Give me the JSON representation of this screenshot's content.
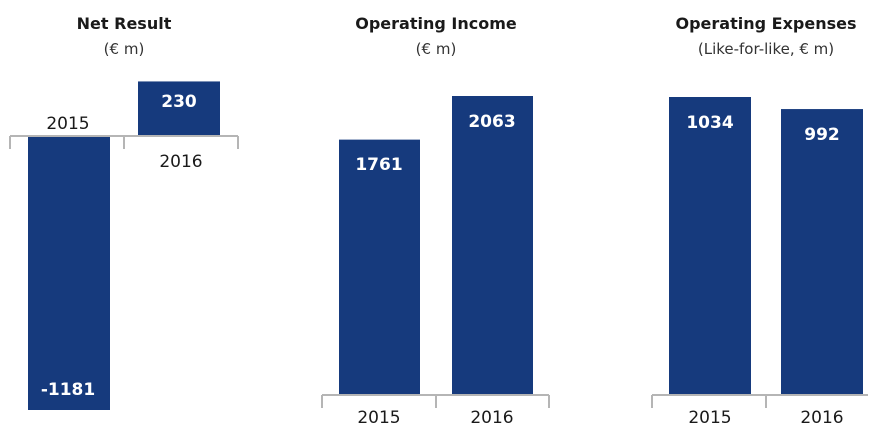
{
  "colors": {
    "bar": "#163a7d",
    "axis": "#b5b5b5"
  },
  "chart_data": [
    {
      "type": "bar",
      "title": "Net Result",
      "subtitle": "(€ m)",
      "categories": [
        "2015",
        "2016"
      ],
      "values": [
        -1181,
        230
      ],
      "data_labels": [
        "-1181",
        "230"
      ]
    },
    {
      "type": "bar",
      "title": "Operating Income",
      "subtitle": "(€ m)",
      "categories": [
        "2015",
        "2016"
      ],
      "values": [
        1761,
        2063
      ],
      "data_labels": [
        "1761",
        "2063"
      ]
    },
    {
      "type": "bar",
      "title": "Operating Expenses",
      "subtitle": "(Like-for-like, € m)",
      "categories": [
        "2015",
        "2016"
      ],
      "values": [
        1034,
        992
      ],
      "data_labels": [
        "1034",
        "992"
      ]
    }
  ]
}
